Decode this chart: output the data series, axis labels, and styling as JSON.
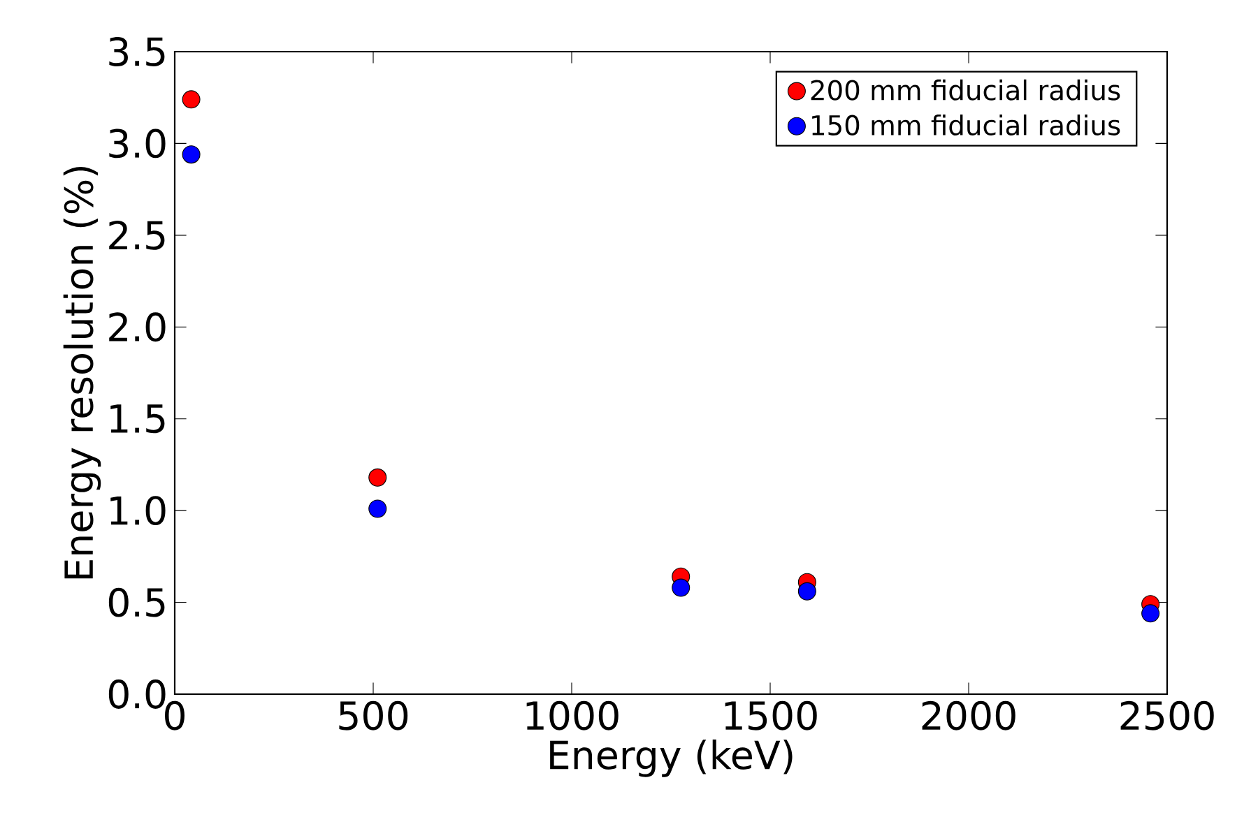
{
  "chart_data": {
    "type": "scatter",
    "xlabel": "Energy (keV)",
    "ylabel": "Energy resolution (%)",
    "x": [
      41.5,
      511,
      1275,
      1593,
      2458
    ],
    "series": [
      {
        "name": "200 mm fiducial radius",
        "color": "#ff0000",
        "values": [
          3.24,
          1.18,
          0.64,
          0.61,
          0.49
        ]
      },
      {
        "name": "150 mm fiducial radius",
        "color": "#0000ff",
        "values": [
          2.94,
          1.01,
          0.58,
          0.56,
          0.44
        ]
      }
    ],
    "xlim": [
      0,
      2500
    ],
    "ylim": [
      0,
      3.5
    ],
    "xticks": [
      0,
      500,
      1000,
      1500,
      2000,
      2500
    ],
    "yticks": [
      {
        "value": 0,
        "label": "0.0"
      },
      {
        "value": 0.5,
        "label": "0.5"
      },
      {
        "value": 1,
        "label": "1.0"
      },
      {
        "value": 1.5,
        "label": "1.5"
      },
      {
        "value": 2,
        "label": "2.0"
      },
      {
        "value": 2.5,
        "label": "2.5"
      },
      {
        "value": 3,
        "label": "3.0"
      },
      {
        "value": 3.5,
        "label": "3.5"
      }
    ],
    "legend": "top right",
    "marker": "circle",
    "grid": false
  }
}
